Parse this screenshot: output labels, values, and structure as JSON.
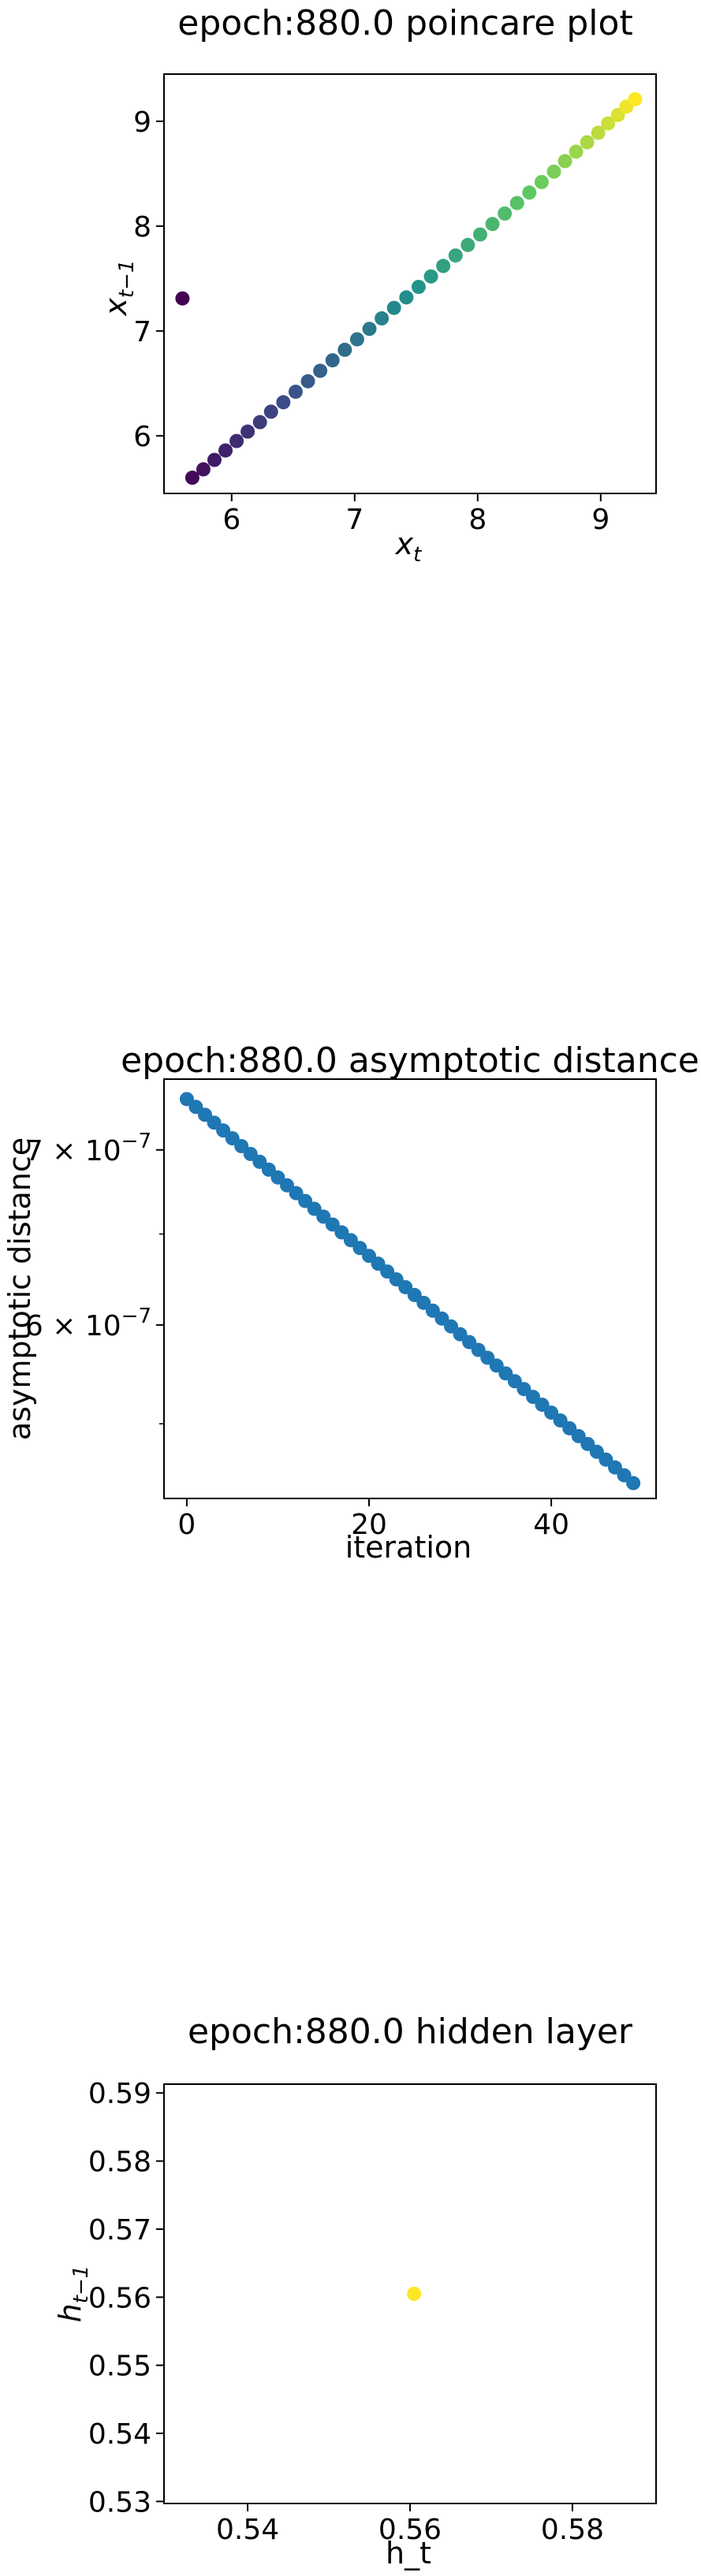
{
  "chart_data": [
    {
      "type": "scatter",
      "title": "epoch:880.0 poincare plot",
      "xlabel": "x_t",
      "ylabel": "x_{t−1}",
      "xlim": [
        5.45,
        9.45
      ],
      "ylim": [
        5.45,
        9.45
      ],
      "xticks": [
        6,
        7,
        8,
        9
      ],
      "yticks": [
        6,
        7,
        8,
        9
      ],
      "color_scale": "viridis",
      "points": [
        {
          "x": 5.6,
          "y": 7.31
        },
        {
          "x": 5.68,
          "y": 5.6
        },
        {
          "x": 5.77,
          "y": 5.68
        },
        {
          "x": 5.86,
          "y": 5.77
        },
        {
          "x": 5.95,
          "y": 5.86
        },
        {
          "x": 6.04,
          "y": 5.95
        },
        {
          "x": 6.13,
          "y": 6.04
        },
        {
          "x": 6.23,
          "y": 6.13
        },
        {
          "x": 6.32,
          "y": 6.23
        },
        {
          "x": 6.42,
          "y": 6.32
        },
        {
          "x": 6.52,
          "y": 6.42
        },
        {
          "x": 6.62,
          "y": 6.52
        },
        {
          "x": 6.72,
          "y": 6.62
        },
        {
          "x": 6.82,
          "y": 6.72
        },
        {
          "x": 6.92,
          "y": 6.82
        },
        {
          "x": 7.02,
          "y": 6.92
        },
        {
          "x": 7.12,
          "y": 7.02
        },
        {
          "x": 7.22,
          "y": 7.12
        },
        {
          "x": 7.32,
          "y": 7.22
        },
        {
          "x": 7.42,
          "y": 7.32
        },
        {
          "x": 7.52,
          "y": 7.42
        },
        {
          "x": 7.62,
          "y": 7.52
        },
        {
          "x": 7.72,
          "y": 7.62
        },
        {
          "x": 7.82,
          "y": 7.72
        },
        {
          "x": 7.92,
          "y": 7.82
        },
        {
          "x": 8.02,
          "y": 7.92
        },
        {
          "x": 8.12,
          "y": 8.02
        },
        {
          "x": 8.22,
          "y": 8.12
        },
        {
          "x": 8.32,
          "y": 8.22
        },
        {
          "x": 8.42,
          "y": 8.32
        },
        {
          "x": 8.52,
          "y": 8.42
        },
        {
          "x": 8.62,
          "y": 8.52
        },
        {
          "x": 8.71,
          "y": 8.62
        },
        {
          "x": 8.8,
          "y": 8.71
        },
        {
          "x": 8.89,
          "y": 8.8
        },
        {
          "x": 8.98,
          "y": 8.89
        },
        {
          "x": 9.06,
          "y": 8.98
        },
        {
          "x": 9.14,
          "y": 9.06
        },
        {
          "x": 9.21,
          "y": 9.14
        },
        {
          "x": 9.28,
          "y": 9.21
        }
      ]
    },
    {
      "type": "scatter",
      "title": "epoch:880.0 asymptotic distance",
      "xlabel": "iteration",
      "ylabel": "asymptotic distance",
      "yscale": "log",
      "xlim": [
        -2.5,
        51.5
      ],
      "ylim": [
        5.15e-07,
        7.45e-07
      ],
      "xticks": [
        0,
        20,
        40
      ],
      "yticks": [
        {
          "value": 7e-07,
          "mantissa": "7",
          "exp": "−7"
        },
        {
          "value": 6e-07,
          "mantissa": "6",
          "exp": "−7"
        }
      ],
      "color": "#1f77b4",
      "x": [
        0,
        1,
        2,
        3,
        4,
        5,
        6,
        7,
        8,
        9,
        10,
        11,
        12,
        13,
        14,
        15,
        16,
        17,
        18,
        19,
        20,
        21,
        22,
        23,
        24,
        25,
        26,
        27,
        28,
        29,
        30,
        31,
        32,
        33,
        34,
        35,
        36,
        37,
        38,
        39,
        40,
        41,
        42,
        43,
        44,
        45,
        46,
        47,
        48,
        49
      ],
      "y_start": 7.32e-07,
      "y_end": 5.22e-07
    },
    {
      "type": "scatter",
      "title": "epoch:880.0 hidden layer",
      "xlabel": "h_t",
      "ylabel": "h_{t−1}",
      "xlim": [
        0.5297,
        0.5903
      ],
      "ylim": [
        0.5297,
        0.5913
      ],
      "xticks": [
        "0.54",
        "0.56",
        "0.58"
      ],
      "yticks": [
        "0.53",
        "0.54",
        "0.55",
        "0.56",
        "0.57",
        "0.58",
        "0.59"
      ],
      "color": "#fde725",
      "points": [
        {
          "x": 0.5605,
          "y": 0.5605
        }
      ]
    }
  ]
}
